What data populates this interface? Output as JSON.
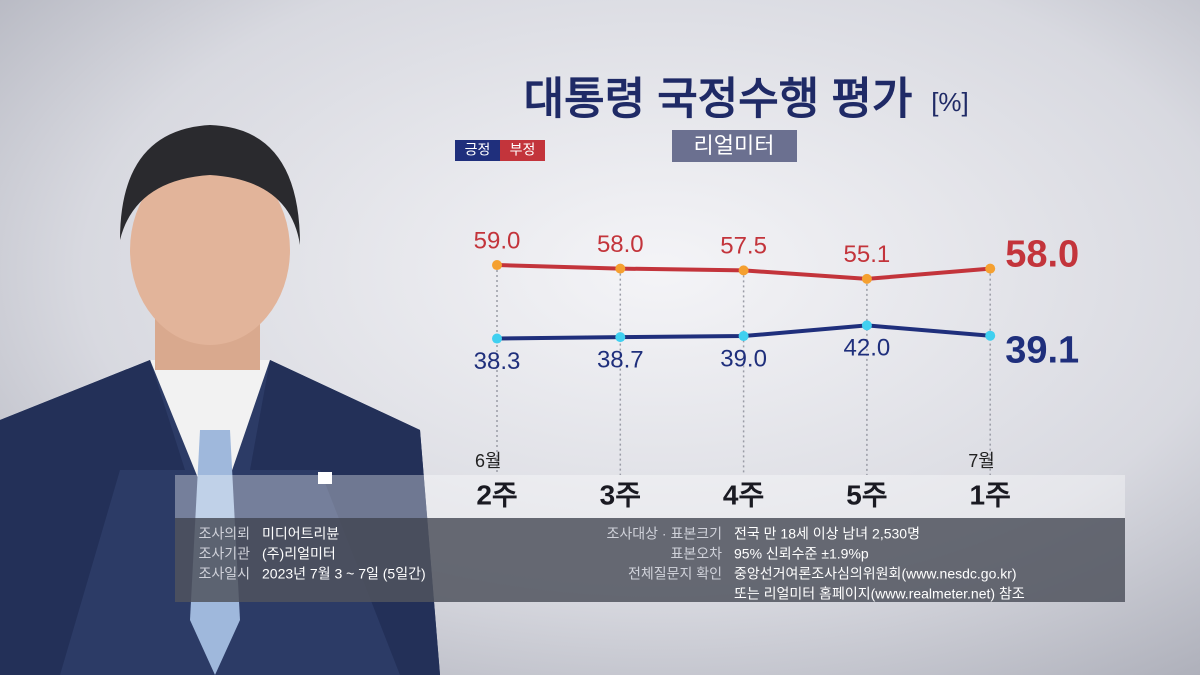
{
  "chart_data": {
    "type": "line",
    "title": "대통령 국정수행 평가",
    "unit": "[%]",
    "source": "리얼미터",
    "months": [
      "6월",
      null,
      null,
      null,
      "7월"
    ],
    "categories": [
      "2주",
      "3주",
      "4주",
      "5주",
      "1주"
    ],
    "series": [
      {
        "name": "긍정",
        "color": "#1f2f7c",
        "point_color": "#40d0f0",
        "values": [
          38.3,
          38.7,
          39.0,
          42.0,
          39.1
        ],
        "value_labels": [
          "38.3",
          "38.7",
          "39.0",
          "42.0",
          "39.1"
        ]
      },
      {
        "name": "부정",
        "color": "#c3343b",
        "point_color": "#f5a030",
        "values": [
          59.0,
          58.0,
          57.5,
          55.1,
          58.0
        ],
        "value_labels": [
          "59.0",
          "58.0",
          "57.5",
          "55.1",
          "58.0"
        ]
      }
    ]
  },
  "notes": {
    "left": [
      {
        "label": "조사의뢰",
        "text": "미디어트리뷴"
      },
      {
        "label": "조사기관",
        "text": "(주)리얼미터"
      },
      {
        "label": "조사일시",
        "text": "2023년 7월 3 ~ 7일 (5일간)"
      }
    ],
    "right": [
      {
        "label": "조사대상 · 표본크기",
        "text": "전국 만 18세 이상 남녀 2,530명"
      },
      {
        "label": "표본오차",
        "text": "95% 신뢰수준 ±1.9%p"
      },
      {
        "label": "전체질문지 확인",
        "text": "중앙선거여론조사심의위원회(www.nesdc.go.kr)"
      }
    ],
    "extra": "또는 리얼미터 홈페이지(www.realmeter.net) 참조"
  }
}
